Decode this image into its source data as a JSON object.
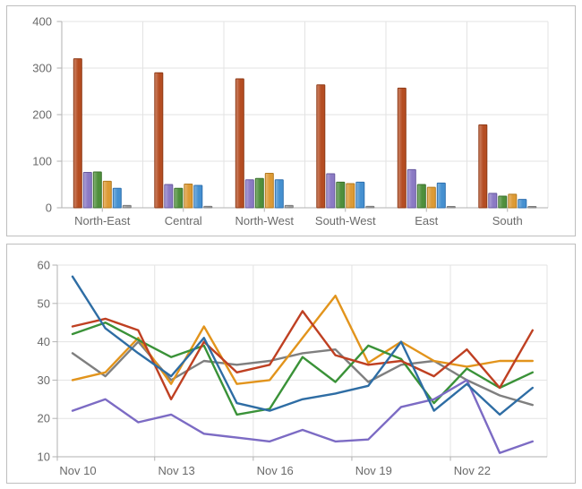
{
  "bar_chart": {
    "chart_data": {
      "type": "bar",
      "title": "",
      "categories": [
        "North-East",
        "Central",
        "North-West",
        "South-West",
        "East",
        "South"
      ],
      "series": [
        {
          "id": "series-rust",
          "color": "#b54d22",
          "border": "#8e3a16",
          "values": [
            320,
            290,
            277,
            264,
            257,
            178
          ]
        },
        {
          "id": "series-purple",
          "color": "#8b7ac4",
          "border": "#685a9e",
          "values": [
            76,
            50,
            60,
            73,
            82,
            31
          ]
        },
        {
          "id": "series-green",
          "color": "#4f8f3c",
          "border": "#3b702c",
          "values": [
            77,
            42,
            63,
            55,
            50,
            25
          ]
        },
        {
          "id": "series-orange",
          "color": "#dd9a35",
          "border": "#b37a1f",
          "values": [
            57,
            51,
            74,
            52,
            44,
            29
          ]
        },
        {
          "id": "series-blue",
          "color": "#4590d0",
          "border": "#2e6fae",
          "values": [
            42,
            48,
            60,
            55,
            53,
            18
          ]
        },
        {
          "id": "series-gray",
          "color": "#9b9b9b",
          "border": "#7d7d7d",
          "values": [
            5,
            3,
            5,
            3,
            2,
            2
          ]
        }
      ],
      "ylim": [
        0,
        400
      ],
      "yticks": [
        0,
        100,
        200,
        300,
        400
      ],
      "grid": true,
      "legend": false
    }
  },
  "line_chart": {
    "chart_data": {
      "type": "line",
      "title": "",
      "x": [
        "Nov 10",
        "Nov 11",
        "Nov 12",
        "Nov 13",
        "Nov 14",
        "Nov 15",
        "Nov 16",
        "Nov 17",
        "Nov 18",
        "Nov 19",
        "Nov 20",
        "Nov 21",
        "Nov 22",
        "Nov 23",
        "Nov 24"
      ],
      "x_axis_labels": [
        {
          "label": "Nov 10",
          "at": 0
        },
        {
          "label": "Nov 13",
          "at": 3
        },
        {
          "label": "Nov 16",
          "at": 6
        },
        {
          "label": "Nov 19",
          "at": 9
        },
        {
          "label": "Nov 22",
          "at": 12
        }
      ],
      "series": [
        {
          "id": "line-gray",
          "color": "#7f7f7f",
          "values": [
            37,
            31,
            40,
            30,
            35,
            34,
            35,
            37,
            38,
            29.5,
            34,
            35,
            30,
            26,
            23.5
          ]
        },
        {
          "id": "line-orange",
          "color": "#e2941c",
          "values": [
            30,
            32,
            41,
            29,
            44,
            29,
            30,
            41,
            52,
            34.5,
            40,
            35,
            33.5,
            35,
            35
          ]
        },
        {
          "id": "line-green",
          "color": "#3a9238",
          "values": [
            42,
            45,
            40.5,
            36,
            39,
            21,
            22.5,
            36,
            29.5,
            39,
            35.5,
            24,
            33,
            28,
            32
          ]
        },
        {
          "id": "line-purple",
          "color": "#7c6bc4",
          "values": [
            22,
            25,
            19,
            21,
            16,
            15,
            14,
            17,
            14,
            14.5,
            23,
            25,
            30,
            11,
            14
          ]
        },
        {
          "id": "line-red",
          "color": "#bf4022",
          "values": [
            44,
            46,
            43,
            25,
            40,
            32,
            34,
            48,
            36.5,
            34,
            35,
            31,
            38,
            28,
            43
          ]
        },
        {
          "id": "line-blue",
          "color": "#2e6da4",
          "values": [
            57,
            43.5,
            37,
            31,
            41,
            24,
            22,
            25,
            26.5,
            28.5,
            40,
            22,
            29,
            21,
            28
          ]
        }
      ],
      "ylim": [
        10,
        60
      ],
      "yticks": [
        10,
        20,
        30,
        40,
        50,
        60
      ],
      "grid": true,
      "legend": false,
      "gridline_days_offset": [
        2.5,
        5.5,
        8.5,
        11.5
      ]
    }
  },
  "colors": {
    "gridline": "#e3e3e3",
    "axis": "#b2b2b2",
    "label_text": "#6a6a6a",
    "panel_border": "#bebebe",
    "background": "#ffffff"
  }
}
